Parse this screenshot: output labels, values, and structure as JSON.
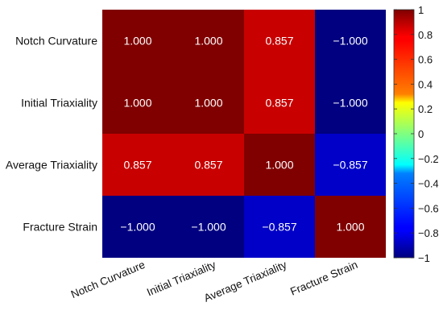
{
  "chart_data": {
    "type": "heatmap",
    "title": "",
    "xlabel": "",
    "ylabel": "",
    "row_labels": [
      "Notch Curvature",
      "Initial Triaxiality",
      "Average Triaxiality",
      "Fracture Strain"
    ],
    "col_labels": [
      "Notch Curvature",
      "Initial Triaxiality",
      "Average Triaxiality",
      "Fracture Strain"
    ],
    "values": [
      [
        1.0,
        1.0,
        0.857,
        -1.0
      ],
      [
        1.0,
        1.0,
        0.857,
        -1.0
      ],
      [
        0.857,
        0.857,
        1.0,
        -0.857
      ],
      [
        -1.0,
        -1.0,
        -0.857,
        1.0
      ]
    ],
    "cell_labels": [
      [
        "1.000",
        "1.000",
        "0.857",
        "−1.000"
      ],
      [
        "1.000",
        "1.000",
        "0.857",
        "−1.000"
      ],
      [
        "0.857",
        "0.857",
        "1.000",
        "−0.857"
      ],
      [
        "−1.000",
        "−1.000",
        "−0.857",
        "1.000"
      ]
    ],
    "colormap": "jet",
    "colorbar": {
      "range": [
        -1,
        1
      ],
      "ticks": [
        1,
        0.8,
        0.6,
        0.4,
        0.2,
        0,
        -0.2,
        -0.4,
        -0.6,
        -0.8,
        -1
      ],
      "tick_labels": [
        "1",
        "0.8",
        "0.6",
        "0.4",
        "0.2",
        "0",
        "−0.2",
        "−0.4",
        "−0.6",
        "−0.8",
        "−1"
      ]
    },
    "grid": false,
    "legend": "colorbar-right"
  }
}
